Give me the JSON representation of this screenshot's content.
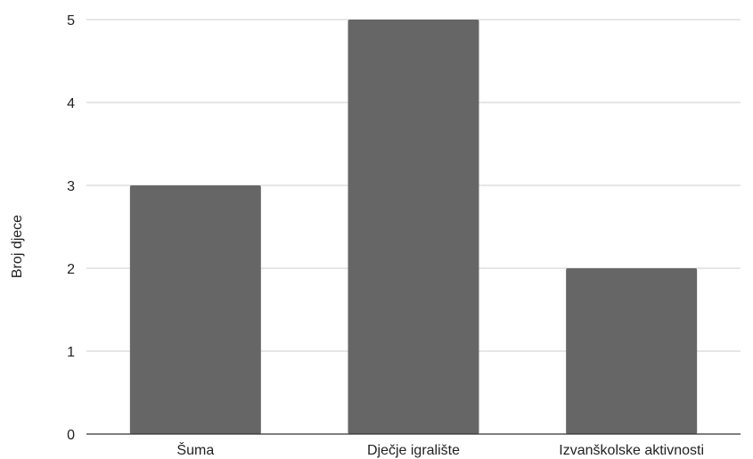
{
  "chart_data": {
    "type": "bar",
    "title": "",
    "xlabel": "",
    "ylabel": "Broj djece",
    "categories": [
      "Šuma",
      "Dječje igralište",
      "Izvanškolske aktivnosti"
    ],
    "values": [
      3,
      5,
      2
    ],
    "ylim": [
      0,
      5
    ],
    "yticks": [
      0,
      1,
      2,
      3,
      4,
      5
    ],
    "grid": true,
    "legend": "none",
    "bar_color": "#666666"
  }
}
